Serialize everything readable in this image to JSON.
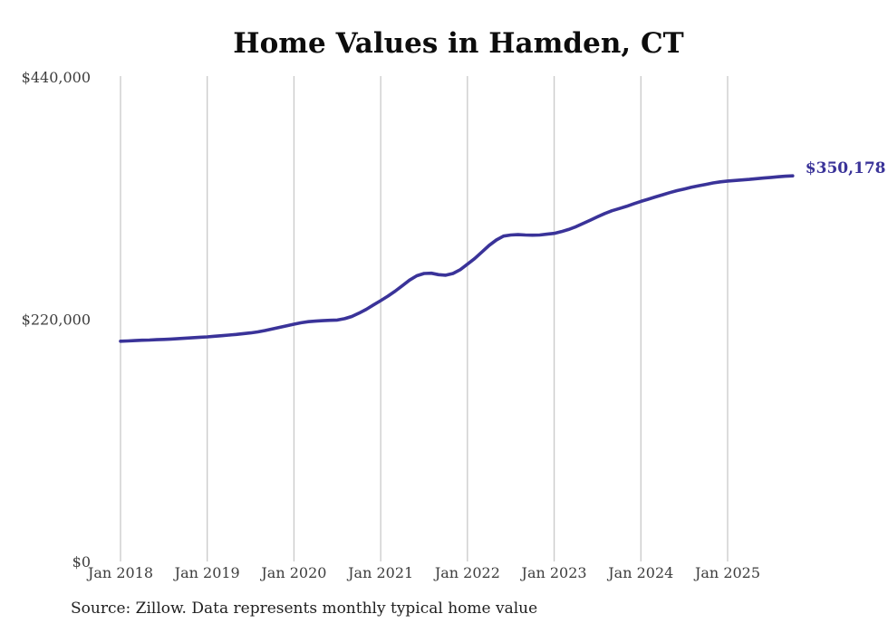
{
  "page": {
    "background_color": "#ffffff"
  },
  "chart_data": {
    "type": "line",
    "title": "Home Values in Hamden, CT",
    "source_note": "Source: Zillow. Data represents monthly typical home value",
    "xlabel": "",
    "ylabel": "",
    "ylim": [
      0,
      440000
    ],
    "grid": "vertical-only",
    "grid_color": "#c9c9c9",
    "legend": "none",
    "end_label": "$350,178",
    "final_value": 350178,
    "y_ticks": [
      {
        "label": "$0",
        "value": 0
      },
      {
        "label": "$220,000",
        "value": 220000
      },
      {
        "label": "$440,000",
        "value": 440000
      }
    ],
    "x_tick_labels": [
      "Jan 2018",
      "Jan 2019",
      "Jan 2020",
      "Jan 2021",
      "Jan 2022",
      "Jan 2023",
      "Jan 2024",
      "Jan 2025"
    ],
    "series": [
      {
        "name": "Typical home value",
        "color": "#3a3399",
        "months": [
          "2018-01",
          "2018-02",
          "2018-03",
          "2018-04",
          "2018-05",
          "2018-06",
          "2018-07",
          "2018-08",
          "2018-09",
          "2018-10",
          "2018-11",
          "2018-12",
          "2019-01",
          "2019-02",
          "2019-03",
          "2019-04",
          "2019-05",
          "2019-06",
          "2019-07",
          "2019-08",
          "2019-09",
          "2019-10",
          "2019-11",
          "2019-12",
          "2020-01",
          "2020-02",
          "2020-03",
          "2020-04",
          "2020-05",
          "2020-06",
          "2020-07",
          "2020-08",
          "2020-09",
          "2020-10",
          "2020-11",
          "2020-12",
          "2021-01",
          "2021-02",
          "2021-03",
          "2021-04",
          "2021-05",
          "2021-06",
          "2021-07",
          "2021-08",
          "2021-09",
          "2021-10",
          "2021-11",
          "2021-12",
          "2022-01",
          "2022-02",
          "2022-03",
          "2022-04",
          "2022-05",
          "2022-06",
          "2022-07",
          "2022-08",
          "2022-09",
          "2022-10",
          "2022-11",
          "2022-12",
          "2023-01",
          "2023-02",
          "2023-03",
          "2023-04",
          "2023-05",
          "2023-06",
          "2023-07",
          "2023-08",
          "2023-09",
          "2023-10",
          "2023-11",
          "2023-12",
          "2024-01",
          "2024-02",
          "2024-03",
          "2024-04",
          "2024-05",
          "2024-06",
          "2024-07",
          "2024-08",
          "2024-09",
          "2024-10",
          "2024-11",
          "2024-12",
          "2025-01",
          "2025-02",
          "2025-03",
          "2025-04",
          "2025-05",
          "2025-06",
          "2025-07",
          "2025-08",
          "2025-09",
          "2025-10"
        ],
        "values": [
          200000,
          200300,
          200600,
          200900,
          201100,
          201400,
          201700,
          202000,
          202400,
          202800,
          203200,
          203600,
          204000,
          204500,
          205000,
          205600,
          206200,
          206900,
          207600,
          208500,
          209700,
          211100,
          212600,
          214100,
          215500,
          216800,
          217800,
          218300,
          218700,
          219000,
          219300,
          220500,
          222500,
          225500,
          229000,
          233000,
          236900,
          241000,
          245500,
          250500,
          255500,
          259500,
          261500,
          261800,
          260500,
          260000,
          261500,
          265000,
          270000,
          275000,
          281000,
          287000,
          292000,
          295500,
          296500,
          296800,
          296500,
          296300,
          296500,
          297200,
          298000,
          299500,
          301500,
          304000,
          307000,
          310000,
          313000,
          316000,
          318500,
          320500,
          322500,
          324800,
          327000,
          329000,
          331000,
          333000,
          335000,
          336800,
          338300,
          339800,
          341200,
          342500,
          343800,
          344800,
          345500,
          346000,
          346500,
          347000,
          347600,
          348200,
          348800,
          349400,
          349900,
          350178
        ]
      }
    ]
  }
}
